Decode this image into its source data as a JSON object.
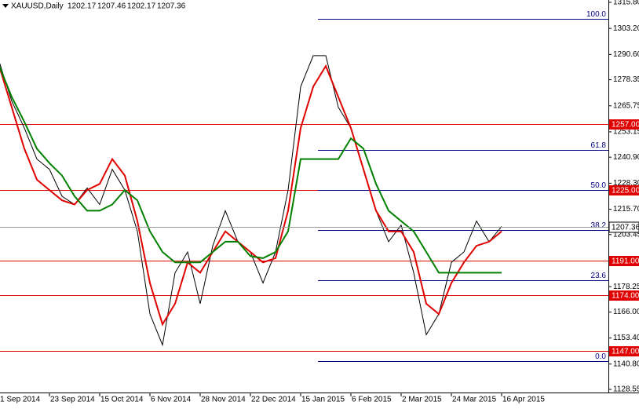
{
  "chart_data": {
    "type": "line",
    "title": "XAUUSD,Daily",
    "header_values": [
      1202.17,
      1207.46,
      1202.17,
      1207.36
    ],
    "categories": [
      "1 Sep 2014",
      null,
      null,
      null,
      "23 Sep 2014",
      null,
      null,
      null,
      "15 Oct 2014",
      null,
      null,
      null,
      "6 Nov 2014",
      null,
      null,
      null,
      "28 Nov 2014",
      null,
      null,
      null,
      "22 Dec 2014",
      null,
      null,
      null,
      "15 Jan 2015",
      null,
      null,
      null,
      "6 Feb 2015",
      null,
      null,
      null,
      "2 Mar 2015",
      null,
      null,
      null,
      "24 Mar 2015",
      null,
      null,
      null,
      "16 Apr 2015"
    ],
    "series": [
      {
        "color": "#000000",
        "values": [
          1287,
          1268,
          1255,
          1240,
          1235,
          1222,
          1218,
          1226,
          1218,
          1235,
          1225,
          1205,
          1165,
          1150,
          1185,
          1195,
          1170,
          1198,
          1215,
          1200,
          1195,
          1180,
          1195,
          1225,
          1275,
          1290,
          1290,
          1265,
          1255,
          1235,
          1215,
          1200,
          1208,
          1185,
          1155,
          1165,
          1190,
          1195,
          1210,
          1200,
          1207.36
        ]
      },
      {
        "color": "#e00000",
        "values": [
          1285,
          1265,
          1245,
          1230,
          1225,
          1220,
          1218,
          1225,
          1228,
          1240,
          1232,
          1210,
          1180,
          1160,
          1170,
          1190,
          1185,
          1195,
          1205,
          1200,
          1195,
          1190,
          1192,
          1215,
          1255,
          1275,
          1285,
          1270,
          1255,
          1235,
          1215,
          1205,
          1205,
          1195,
          1170,
          1165,
          1180,
          1190,
          1198,
          1200,
          1205
        ]
      },
      {
        "color": "#008000",
        "values": [
          1285,
          1270,
          1258,
          1245,
          1238,
          1232,
          1222,
          1215,
          1215,
          1218,
          1225,
          1220,
          1205,
          1195,
          1190,
          1190,
          1190,
          1195,
          1200,
          1200,
          1193,
          1192,
          1195,
          1205,
          1240,
          1240,
          1240,
          1240,
          1250,
          1245,
          1228,
          1215,
          1210,
          1205,
          1195,
          1185,
          1185,
          1185,
          1185,
          1185,
          1185
        ]
      }
    ],
    "ylim": [
      1128.55,
      1315.8
    ],
    "yticks": [
      {
        "value": 1315.8,
        "label": "1315.80"
      },
      {
        "value": 1303.2,
        "label": "1303.20"
      },
      {
        "value": 1290.6,
        "label": "1290.60"
      },
      {
        "value": 1278.35,
        "label": "1278.35"
      },
      {
        "value": 1265.75,
        "label": "1265.75"
      },
      {
        "value": 1253.15,
        "label": "1253.15"
      },
      {
        "value": 1240.9,
        "label": "1240.90"
      },
      {
        "value": 1228.3,
        "label": "1228.30"
      },
      {
        "value": 1215.7,
        "label": "1215.70"
      },
      {
        "value": 1203.45,
        "label": "1203.45"
      },
      {
        "value": 1178.25,
        "label": "1178.25"
      },
      {
        "value": 1166,
        "label": "1166.00"
      },
      {
        "value": 1153.4,
        "label": "1153.40"
      },
      {
        "value": 1140.8,
        "label": "1140.80"
      },
      {
        "value": 1128.55,
        "label": "1128.55"
      }
    ],
    "levels": {
      "color": "#e00000",
      "items": [
        {
          "value": 1257,
          "label": "1257.00"
        },
        {
          "value": 1225,
          "label": "1225.00"
        },
        {
          "value": 1191,
          "label": "1191.00"
        },
        {
          "value": 1174,
          "label": "1174.00"
        },
        {
          "value": 1147,
          "label": "1147.00"
        }
      ]
    },
    "last_price": 1207.36,
    "fib": {
      "color": "#000080",
      "high": 1307.8,
      "low": 1142.3,
      "levels": [
        {
          "value": 100,
          "label": "100.0"
        },
        {
          "value": 61.8,
          "label": "61.8"
        },
        {
          "value": 50,
          "label": "50.0"
        },
        {
          "value": 38.2,
          "label": "38.2"
        },
        {
          "value": 23.6,
          "label": "23.6"
        },
        {
          "value": 0,
          "label": "0.0"
        }
      ]
    }
  }
}
